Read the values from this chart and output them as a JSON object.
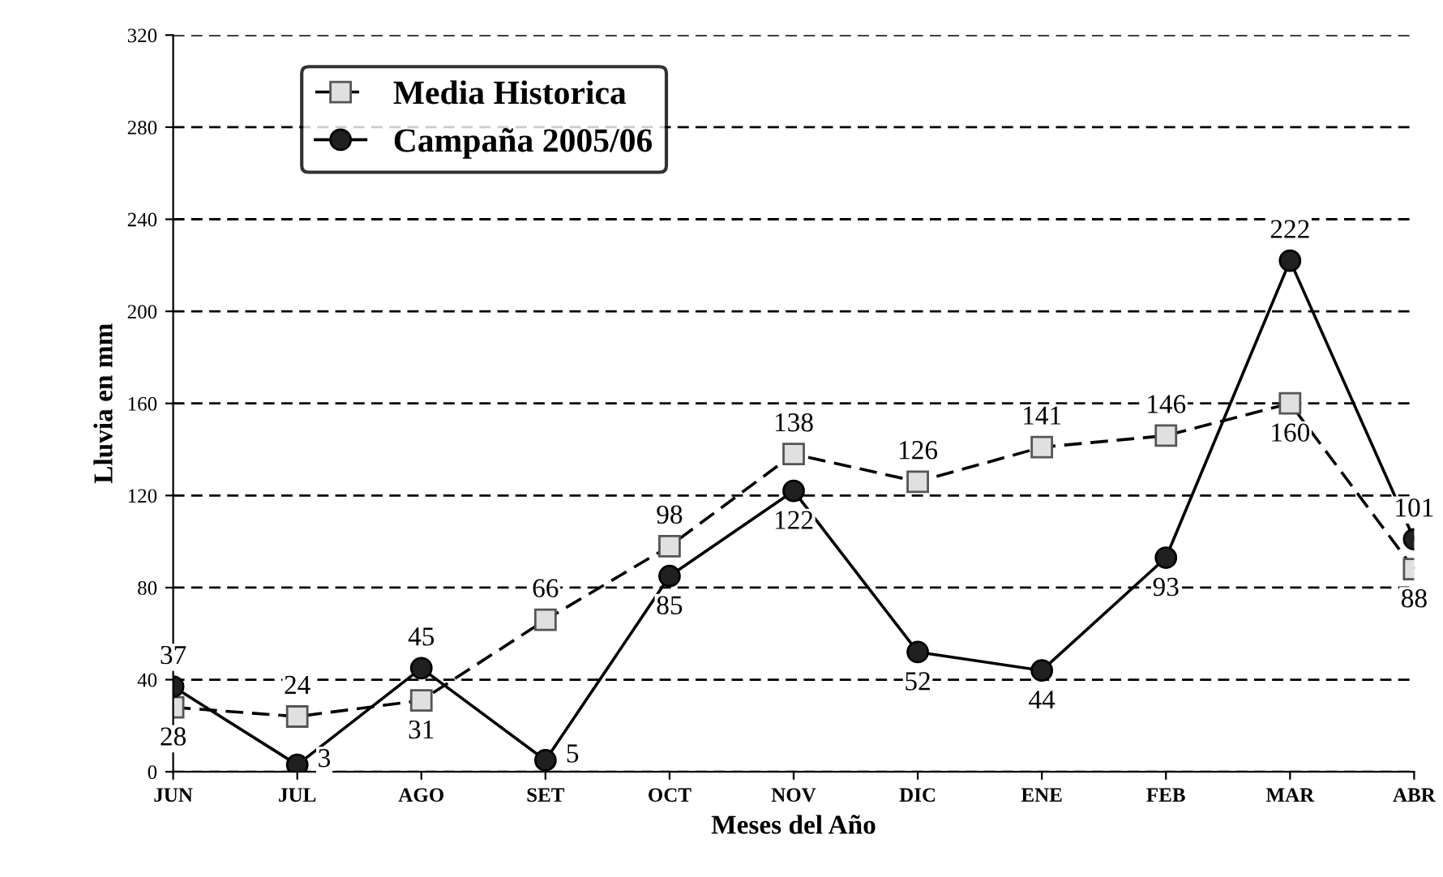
{
  "chart_data": {
    "type": "line",
    "xlabel": "Meses del Año",
    "ylabel": "Lluvia en mm",
    "categories": [
      "JUN",
      "JUL",
      "AGO",
      "SET",
      "OCT",
      "NOV",
      "DIC",
      "ENE",
      "FEB",
      "MAR",
      "ABR"
    ],
    "series": [
      {
        "name": "Media Historica",
        "color": "#000000",
        "marker": "square",
        "line_style": "dashed",
        "values": [
          28,
          24,
          31,
          66,
          98,
          138,
          126,
          141,
          146,
          160,
          88
        ]
      },
      {
        "name": "Campaña 2005/06",
        "color": "#000000",
        "marker": "circle",
        "line_style": "solid",
        "values": [
          37,
          3,
          45,
          5,
          85,
          122,
          52,
          44,
          93,
          222,
          101
        ]
      }
    ],
    "ylim": [
      0,
      320
    ],
    "yticks": [
      0,
      40,
      80,
      120,
      160,
      200,
      240,
      280,
      320
    ],
    "grid": "y",
    "legend": "top left",
    "data_labels": true
  }
}
